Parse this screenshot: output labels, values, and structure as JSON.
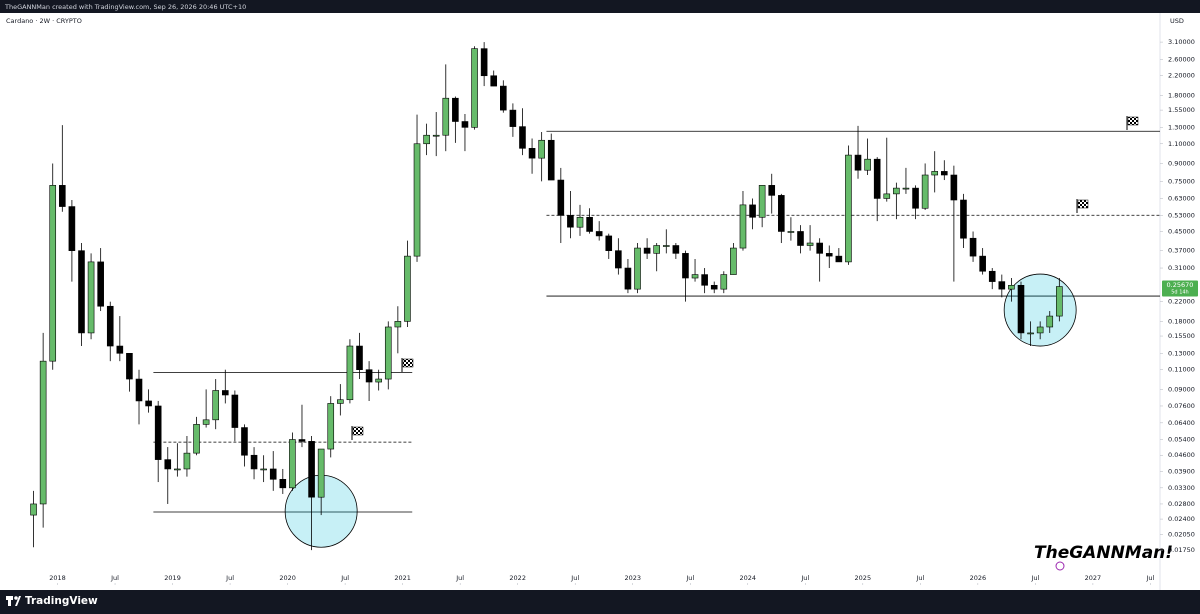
{
  "header": "TheGANNMan created with TradingView.com, Sep 26, 2026 20:46 UTC+10",
  "footer_brand": "TradingView",
  "chart_data": {
    "type": "candlestick",
    "title": "Cardano · 2W · CRYPTO",
    "currency": "USD",
    "watermark": "TheGANNMan!",
    "log_scale": true,
    "grid": false,
    "up_color": "#66bb6a",
    "down_color": "#000000",
    "border_color": "#000000",
    "x": [
      "2017-10",
      "2017-11",
      "2017-12",
      "2018-01",
      "2018-02",
      "2018-03",
      "2018-04",
      "2018-05",
      "2018-06",
      "2018-07",
      "2018-08",
      "2018-09",
      "2018-10",
      "2018-11",
      "2018-12",
      "2019-01",
      "2019-02",
      "2019-03",
      "2019-04",
      "2019-05",
      "2019-06",
      "2019-07",
      "2019-08",
      "2019-09",
      "2019-10",
      "2019-11",
      "2019-12",
      "2020-01",
      "2020-02",
      "2020-03",
      "2020-04",
      "2020-05",
      "2020-06",
      "2020-07",
      "2020-08",
      "2020-09",
      "2020-10",
      "2020-11",
      "2020-12",
      "2021-01",
      "2021-02",
      "2021-03",
      "2021-04",
      "2021-05",
      "2021-06",
      "2021-07",
      "2021-08",
      "2021-09",
      "2021-10",
      "2021-11",
      "2021-12",
      "2022-01",
      "2022-02",
      "2022-03",
      "2022-04",
      "2022-05",
      "2022-06",
      "2022-07",
      "2022-08",
      "2022-09",
      "2022-10",
      "2022-11",
      "2022-12",
      "2023-01",
      "2023-02",
      "2023-03",
      "2023-04",
      "2023-05",
      "2023-06",
      "2023-07",
      "2023-08",
      "2023-09",
      "2023-10",
      "2023-11",
      "2023-12",
      "2024-01",
      "2024-02",
      "2024-03",
      "2024-04",
      "2024-05",
      "2024-06",
      "2024-07",
      "2024-08",
      "2024-09",
      "2024-10",
      "2024-11",
      "2024-12",
      "2025-01",
      "2025-02",
      "2025-03",
      "2025-04",
      "2025-05",
      "2025-06",
      "2025-07",
      "2025-08",
      "2025-09",
      "2025-10",
      "2025-11",
      "2025-12",
      "2026-01",
      "2026-02",
      "2026-03",
      "2026-04",
      "2026-05",
      "2026-06",
      "2026-07",
      "2026-08",
      "2026-09"
    ],
    "open": [
      0.025,
      0.028,
      0.12,
      0.72,
      0.58,
      0.37,
      0.16,
      0.33,
      0.21,
      0.14,
      0.13,
      0.1,
      0.08,
      0.076,
      0.044,
      0.04,
      0.04,
      0.047,
      0.063,
      0.066,
      0.089,
      0.085,
      0.061,
      0.046,
      0.04,
      0.04,
      0.036,
      0.033,
      0.054,
      0.053,
      0.03,
      0.049,
      0.078,
      0.081,
      0.14,
      0.11,
      0.097,
      0.1,
      0.17,
      0.18,
      0.35,
      1.1,
      1.2,
      1.2,
      1.75,
      1.38,
      1.3,
      2.9,
      2.2,
      1.98,
      1.55,
      1.31,
      1.05,
      0.95,
      1.14,
      0.76,
      0.53,
      0.47,
      0.52,
      0.45,
      0.43,
      0.37,
      0.31,
      0.25,
      0.38,
      0.36,
      0.39,
      0.39,
      0.36,
      0.28,
      0.29,
      0.26,
      0.25,
      0.29,
      0.38,
      0.59,
      0.52,
      0.72,
      0.65,
      0.45,
      0.45,
      0.39,
      0.4,
      0.36,
      0.35,
      0.33,
      0.98,
      0.84,
      0.94,
      0.63,
      0.66,
      0.7,
      0.7,
      0.57,
      0.8,
      0.83,
      0.8,
      0.62,
      0.42,
      0.35,
      0.3,
      0.27,
      0.25,
      0.26,
      0.16,
      0.16,
      0.17,
      0.19
    ],
    "high": [
      0.032,
      0.16,
      0.9,
      1.33,
      0.62,
      0.4,
      0.36,
      0.38,
      0.22,
      0.19,
      0.13,
      0.11,
      0.09,
      0.08,
      0.05,
      0.052,
      0.056,
      0.068,
      0.09,
      0.1,
      0.11,
      0.089,
      0.063,
      0.05,
      0.046,
      0.048,
      0.04,
      0.058,
      0.077,
      0.056,
      0.049,
      0.084,
      0.095,
      0.15,
      0.16,
      0.12,
      0.11,
      0.18,
      0.21,
      0.41,
      1.48,
      1.35,
      1.52,
      2.47,
      1.78,
      1.49,
      2.97,
      3.1,
      2.32,
      2.1,
      1.66,
      1.58,
      1.16,
      1.24,
      1.22,
      0.86,
      0.68,
      0.59,
      0.57,
      0.5,
      0.44,
      0.42,
      0.34,
      0.4,
      0.42,
      0.4,
      0.46,
      0.4,
      0.37,
      0.34,
      0.31,
      0.27,
      0.3,
      0.4,
      0.68,
      0.63,
      0.72,
      0.81,
      0.66,
      0.52,
      0.48,
      0.48,
      0.42,
      0.39,
      0.38,
      1.08,
      1.32,
      1.16,
      0.96,
      1.17,
      0.74,
      0.86,
      0.72,
      0.9,
      1.02,
      0.93,
      0.88,
      0.66,
      0.45,
      0.38,
      0.31,
      0.29,
      0.28,
      0.27,
      0.18,
      0.18,
      0.2,
      0.28
    ],
    "low": [
      0.018,
      0.022,
      0.11,
      0.55,
      0.27,
      0.14,
      0.15,
      0.2,
      0.12,
      0.12,
      0.088,
      0.063,
      0.071,
      0.035,
      0.028,
      0.037,
      0.037,
      0.046,
      0.061,
      0.06,
      0.078,
      0.053,
      0.041,
      0.036,
      0.035,
      0.032,
      0.031,
      0.032,
      0.05,
      0.0175,
      0.025,
      0.045,
      0.069,
      0.078,
      0.1,
      0.08,
      0.089,
      0.09,
      0.13,
      0.17,
      0.33,
      0.98,
      0.97,
      1.02,
      1.11,
      1.02,
      1.27,
      1.98,
      1.98,
      1.51,
      1.18,
      0.98,
      0.81,
      0.75,
      0.76,
      0.4,
      0.42,
      0.43,
      0.44,
      0.41,
      0.34,
      0.29,
      0.24,
      0.24,
      0.34,
      0.3,
      0.36,
      0.34,
      0.22,
      0.27,
      0.24,
      0.24,
      0.24,
      0.29,
      0.37,
      0.46,
      0.47,
      0.54,
      0.4,
      0.41,
      0.36,
      0.37,
      0.27,
      0.31,
      0.33,
      0.32,
      0.77,
      0.8,
      0.5,
      0.61,
      0.51,
      0.66,
      0.51,
      0.56,
      0.67,
      0.76,
      0.27,
      0.38,
      0.33,
      0.29,
      0.25,
      0.23,
      0.22,
      0.15,
      0.14,
      0.15,
      0.16,
      0.18
    ],
    "close": [
      0.028,
      0.12,
      0.72,
      0.58,
      0.37,
      0.16,
      0.33,
      0.21,
      0.14,
      0.13,
      0.1,
      0.08,
      0.076,
      0.044,
      0.04,
      0.04,
      0.047,
      0.063,
      0.066,
      0.089,
      0.085,
      0.061,
      0.046,
      0.04,
      0.04,
      0.036,
      0.033,
      0.054,
      0.053,
      0.03,
      0.049,
      0.078,
      0.081,
      0.14,
      0.11,
      0.097,
      0.1,
      0.17,
      0.18,
      0.35,
      1.1,
      1.2,
      1.2,
      1.75,
      1.38,
      1.3,
      2.9,
      2.2,
      1.98,
      1.55,
      1.31,
      1.05,
      0.95,
      1.14,
      0.76,
      0.53,
      0.47,
      0.52,
      0.45,
      0.43,
      0.37,
      0.31,
      0.25,
      0.38,
      0.36,
      0.39,
      0.39,
      0.36,
      0.28,
      0.29,
      0.26,
      0.25,
      0.29,
      0.38,
      0.59,
      0.52,
      0.72,
      0.65,
      0.45,
      0.45,
      0.39,
      0.4,
      0.36,
      0.35,
      0.33,
      0.98,
      0.84,
      0.94,
      0.63,
      0.66,
      0.7,
      0.7,
      0.57,
      0.8,
      0.83,
      0.8,
      0.62,
      0.42,
      0.35,
      0.3,
      0.27,
      0.25,
      0.26,
      0.16,
      0.16,
      0.17,
      0.19,
      0.2567
    ],
    "last_price": {
      "value": 0.2567,
      "label": "0.25670"
    },
    "countdown": "5d 14h",
    "xlim": [
      "2017-07",
      "2027-08"
    ],
    "xticks": [
      {
        "value": "2018-01",
        "label": "2018"
      },
      {
        "value": "2018-07",
        "label": "Jul"
      },
      {
        "value": "2019-01",
        "label": "2019"
      },
      {
        "value": "2019-07",
        "label": "Jul"
      },
      {
        "value": "2020-01",
        "label": "2020"
      },
      {
        "value": "2020-07",
        "label": "Jul"
      },
      {
        "value": "2021-01",
        "label": "2021"
      },
      {
        "value": "2021-07",
        "label": "Jul"
      },
      {
        "value": "2022-01",
        "label": "2022"
      },
      {
        "value": "2022-07",
        "label": "Jul"
      },
      {
        "value": "2023-01",
        "label": "2023"
      },
      {
        "value": "2023-07",
        "label": "Jul"
      },
      {
        "value": "2024-01",
        "label": "2024"
      },
      {
        "value": "2024-07",
        "label": "Jul"
      },
      {
        "value": "2025-01",
        "label": "2025"
      },
      {
        "value": "2025-07",
        "label": "Jul"
      },
      {
        "value": "2026-01",
        "label": "2026"
      },
      {
        "value": "2026-07",
        "label": "Jul"
      },
      {
        "value": "2027-01",
        "label": "2027"
      },
      {
        "value": "2027-07",
        "label": "Jul"
      }
    ],
    "ylim": [
      0.0129,
      4.17
    ],
    "yticks": [
      {
        "value": 3.1,
        "label": "3.10000"
      },
      {
        "value": 2.6,
        "label": "2.60000"
      },
      {
        "value": 2.2,
        "label": "2.20000"
      },
      {
        "value": 1.8,
        "label": "1.80000"
      },
      {
        "value": 1.55,
        "label": "1.55000"
      },
      {
        "value": 1.3,
        "label": "1.30000"
      },
      {
        "value": 1.1,
        "label": "1.10000"
      },
      {
        "value": 0.9,
        "label": "0.90000"
      },
      {
        "value": 0.75,
        "label": "0.75000"
      },
      {
        "value": 0.63,
        "label": "0.63000"
      },
      {
        "value": 0.53,
        "label": "0.53000"
      },
      {
        "value": 0.45,
        "label": "0.45000"
      },
      {
        "value": 0.37,
        "label": "0.37000"
      },
      {
        "value": 0.31,
        "label": "0.31000"
      },
      {
        "value": 0.22,
        "label": "0.22000"
      },
      {
        "value": 0.18,
        "label": "0.18000"
      },
      {
        "value": 0.155,
        "label": "0.15500"
      },
      {
        "value": 0.13,
        "label": "0.13000"
      },
      {
        "value": 0.11,
        "label": "0.11000"
      },
      {
        "value": 0.09,
        "label": "0.09000"
      },
      {
        "value": 0.076,
        "label": "0.07600"
      },
      {
        "value": 0.064,
        "label": "0.06400"
      },
      {
        "value": 0.054,
        "label": "0.05400"
      },
      {
        "value": 0.046,
        "label": "0.04600"
      },
      {
        "value": 0.039,
        "label": "0.03900"
      },
      {
        "value": 0.033,
        "label": "0.03300"
      },
      {
        "value": 0.028,
        "label": "0.02800"
      },
      {
        "value": 0.024,
        "label": "0.02400"
      },
      {
        "value": 0.0205,
        "label": "0.02050"
      },
      {
        "value": 0.0175,
        "label": "0.01750"
      }
    ],
    "levels": [
      {
        "price": 0.107,
        "from": "2018-11",
        "to": "2021-02",
        "style": "solid"
      },
      {
        "price": 0.0526,
        "from": "2018-11",
        "to": "2021-02",
        "style": "dashed"
      },
      {
        "price": 0.0258,
        "from": "2018-11",
        "to": "2021-02",
        "style": "solid"
      },
      {
        "price": 1.25,
        "from": "2022-04",
        "to": "2027-08",
        "style": "solid"
      },
      {
        "price": 0.531,
        "from": "2022-04",
        "to": "2027-08",
        "style": "dashed"
      },
      {
        "price": 0.233,
        "from": "2022-04",
        "to": "2027-08",
        "style": "solid"
      }
    ],
    "circles": [
      {
        "x": "2020-04",
        "price": 0.026
      },
      {
        "x": "2026-07",
        "price": 0.202
      }
    ]
  }
}
